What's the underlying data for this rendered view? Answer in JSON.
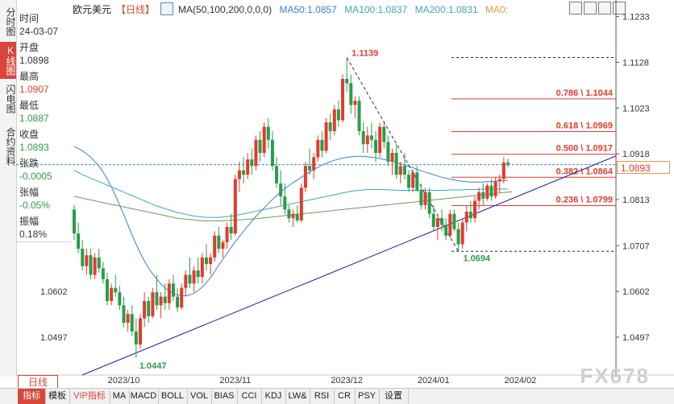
{
  "left_tabs": [
    {
      "label": "分时图",
      "active": false
    },
    {
      "label": "K线图",
      "active": true
    },
    {
      "label": "闪电图",
      "active": false
    },
    {
      "label": "合约资料",
      "active": false
    }
  ],
  "info_panel": {
    "time_label": "时间",
    "time_value": "24-03-07",
    "open_label": "开盘",
    "open_value": "1.0898",
    "high_label": "最高",
    "high_value": "1.0907",
    "low_label": "最低",
    "low_value": "1.0887",
    "close_label": "收盘",
    "close_value": "1.0893",
    "change_label": "张跌",
    "change_value": "-0.0005",
    "pct_label": "张幅",
    "pct_value": "-0.05%",
    "amp_label": "振幅",
    "amp_value": "0.18%"
  },
  "legend": {
    "symbol": "欧元美元",
    "period": "【日线】",
    "ma_params": "MA(50,100,200,0,0,0)",
    "ma50": "MA50:1.0857",
    "ma100": "MA100:1.0837",
    "ma200": "MA200:1.0831",
    "ma0": "MA0:"
  },
  "period_button": "日线",
  "watermark": "FX678",
  "bottom_tabs": [
    "指标",
    "模板",
    "VIP指标",
    "MA",
    "MACD",
    "BOLL",
    "VOL",
    "BIAS",
    "CCI",
    "KDJ",
    "LW&",
    "RSI",
    "CR",
    "PSY",
    "设置"
  ],
  "colors": {
    "up": "#e23b2e",
    "down": "#2a9d4b",
    "ma50": "#3a7fd5",
    "ma100": "#3aa9b6",
    "ma200": "#6b9a5a",
    "fib": "#e23b2e",
    "trend": "#1a1aa0",
    "accent": "#d9463a"
  },
  "chart_data": {
    "type": "candlestick",
    "title": "欧元美元 日线",
    "x_labels": [
      "2023/10",
      "2023/11",
      "2023/12",
      "2024/01",
      "2024/02"
    ],
    "y_ticks": [
      "1.1233",
      "1.1128",
      "1.1023",
      "1.0918",
      "1.0813",
      "1.0707",
      "1.0602",
      "1.0497"
    ],
    "current_price": "1.0893",
    "high_label": "1.1139",
    "low_label": "1.0694",
    "origin_low_label": "1.0447",
    "fib_levels": [
      {
        "ratio": "0.786",
        "value": 1.1044,
        "label": "0.786 \\ 1.1044"
      },
      {
        "ratio": "0.618",
        "value": 1.0969,
        "label": "0.618 \\ 1.0969"
      },
      {
        "ratio": "0.500",
        "value": 1.0917,
        "label": "0.500 \\ 1.0917"
      },
      {
        "ratio": "0.382",
        "value": 1.0864,
        "label": "0.382 \\ 1.0864"
      },
      {
        "ratio": "0.236",
        "value": 1.0799,
        "label": "0.236 \\ 1.0799"
      }
    ],
    "ylim": [
      1.041,
      1.126
    ],
    "candles": [
      [
        1.079,
        1.08,
        1.072,
        1.0735
      ],
      [
        1.0735,
        1.076,
        1.069,
        1.07
      ],
      [
        1.07,
        1.072,
        1.065,
        1.066
      ],
      [
        1.066,
        1.07,
        1.064,
        1.0685
      ],
      [
        1.0685,
        1.07,
        1.063,
        1.064
      ],
      [
        1.064,
        1.069,
        1.063,
        1.068
      ],
      [
        1.068,
        1.07,
        1.0645,
        1.0655
      ],
      [
        1.0655,
        1.067,
        1.062,
        1.063
      ],
      [
        1.063,
        1.0645,
        1.057,
        1.058
      ],
      [
        1.058,
        1.062,
        1.057,
        1.061
      ],
      [
        1.061,
        1.064,
        1.059,
        1.06
      ],
      [
        1.06,
        1.0615,
        1.056,
        1.057
      ],
      [
        1.057,
        1.059,
        1.052,
        1.053
      ],
      [
        1.053,
        1.056,
        1.051,
        1.055
      ],
      [
        1.055,
        1.057,
        1.05,
        1.051
      ],
      [
        1.051,
        1.054,
        1.045,
        1.048
      ],
      [
        1.048,
        1.055,
        1.047,
        1.054
      ],
      [
        1.054,
        1.06,
        1.052,
        1.058
      ],
      [
        1.058,
        1.059,
        1.053,
        1.0545
      ],
      [
        1.0545,
        1.061,
        1.054,
        1.06
      ],
      [
        1.06,
        1.064,
        1.056,
        1.057
      ],
      [
        1.057,
        1.06,
        1.054,
        1.059
      ],
      [
        1.059,
        1.062,
        1.056,
        1.0575
      ],
      [
        1.0575,
        1.063,
        1.056,
        1.062
      ],
      [
        1.062,
        1.064,
        1.058,
        1.059
      ],
      [
        1.059,
        1.061,
        1.0555,
        1.0565
      ],
      [
        1.0565,
        1.062,
        1.056,
        1.061
      ],
      [
        1.061,
        1.065,
        1.059,
        1.064
      ],
      [
        1.064,
        1.068,
        1.061,
        1.062
      ],
      [
        1.062,
        1.066,
        1.06,
        1.065
      ],
      [
        1.065,
        1.068,
        1.062,
        1.0635
      ],
      [
        1.0635,
        1.069,
        1.062,
        1.068
      ],
      [
        1.068,
        1.071,
        1.065,
        1.0665
      ],
      [
        1.0665,
        1.069,
        1.064,
        1.068
      ],
      [
        1.068,
        1.074,
        1.067,
        1.073
      ],
      [
        1.073,
        1.075,
        1.069,
        1.07
      ],
      [
        1.07,
        1.072,
        1.068,
        1.0715
      ],
      [
        1.0715,
        1.076,
        1.07,
        1.075
      ],
      [
        1.075,
        1.078,
        1.072,
        1.0735
      ],
      [
        1.0735,
        1.087,
        1.073,
        1.086
      ],
      [
        1.086,
        1.09,
        1.083,
        1.088
      ],
      [
        1.088,
        1.091,
        1.085,
        1.087
      ],
      [
        1.087,
        1.092,
        1.086,
        1.0905
      ],
      [
        1.0905,
        1.093,
        1.087,
        1.089
      ],
      [
        1.089,
        1.096,
        1.088,
        1.095
      ],
      [
        1.095,
        1.097,
        1.09,
        1.092
      ],
      [
        1.092,
        1.099,
        1.091,
        1.098
      ],
      [
        1.098,
        1.1,
        1.093,
        1.095
      ],
      [
        1.095,
        1.097,
        1.088,
        1.089
      ],
      [
        1.089,
        1.091,
        1.084,
        1.085
      ],
      [
        1.085,
        1.088,
        1.08,
        1.082
      ],
      [
        1.082,
        1.085,
        1.078,
        1.079
      ],
      [
        1.079,
        1.08,
        1.076,
        1.077
      ],
      [
        1.077,
        1.079,
        1.075,
        1.078
      ],
      [
        1.078,
        1.08,
        1.076,
        1.0765
      ],
      [
        1.0765,
        1.085,
        1.076,
        1.084
      ],
      [
        1.084,
        1.09,
        1.083,
        1.089
      ],
      [
        1.089,
        1.093,
        1.087,
        1.088
      ],
      [
        1.088,
        1.092,
        1.086,
        1.091
      ],
      [
        1.091,
        1.096,
        1.09,
        1.095
      ],
      [
        1.095,
        1.097,
        1.091,
        1.0925
      ],
      [
        1.0925,
        1.1,
        1.092,
        1.099
      ],
      [
        1.099,
        1.101,
        1.095,
        1.097
      ],
      [
        1.097,
        1.103,
        1.096,
        1.102
      ],
      [
        1.102,
        1.104,
        1.098,
        1.0995
      ],
      [
        1.0995,
        1.11,
        1.099,
        1.109
      ],
      [
        1.109,
        1.1139,
        1.106,
        1.108
      ],
      [
        1.108,
        1.11,
        1.101,
        1.103
      ],
      [
        1.103,
        1.105,
        1.1,
        1.104
      ],
      [
        1.104,
        1.105,
        1.096,
        1.097
      ],
      [
        1.097,
        1.099,
        1.092,
        1.094
      ],
      [
        1.094,
        1.098,
        1.092,
        1.096
      ],
      [
        1.096,
        1.099,
        1.093,
        1.095
      ],
      [
        1.095,
        1.097,
        1.09,
        1.092
      ],
      [
        1.092,
        1.099,
        1.091,
        1.098
      ],
      [
        1.098,
        1.099,
        1.093,
        1.0945
      ],
      [
        1.0945,
        1.096,
        1.089,
        1.09
      ],
      [
        1.09,
        1.093,
        1.087,
        1.092
      ],
      [
        1.092,
        1.094,
        1.086,
        1.087
      ],
      [
        1.087,
        1.09,
        1.085,
        1.089
      ],
      [
        1.089,
        1.092,
        1.086,
        1.087
      ],
      [
        1.087,
        1.088,
        1.083,
        1.084
      ],
      [
        1.084,
        1.088,
        1.083,
        1.0875
      ],
      [
        1.0875,
        1.089,
        1.083,
        1.0835
      ],
      [
        1.0835,
        1.085,
        1.079,
        1.08
      ],
      [
        1.08,
        1.084,
        1.079,
        1.083
      ],
      [
        1.083,
        1.084,
        1.077,
        1.078
      ],
      [
        1.078,
        1.08,
        1.074,
        1.075
      ],
      [
        1.075,
        1.078,
        1.072,
        1.077
      ],
      [
        1.077,
        1.079,
        1.074,
        1.0755
      ],
      [
        1.0755,
        1.077,
        1.072,
        1.073
      ],
      [
        1.073,
        1.079,
        1.0725,
        1.078
      ],
      [
        1.078,
        1.079,
        1.074,
        1.0745
      ],
      [
        1.0745,
        1.076,
        1.0694,
        1.071
      ],
      [
        1.071,
        1.077,
        1.07,
        1.076
      ],
      [
        1.076,
        1.08,
        1.074,
        1.0785
      ],
      [
        1.0785,
        1.081,
        1.076,
        1.077
      ],
      [
        1.077,
        1.082,
        1.076,
        1.081
      ],
      [
        1.081,
        1.084,
        1.079,
        1.083
      ],
      [
        1.083,
        1.085,
        1.08,
        1.0815
      ],
      [
        1.0815,
        1.085,
        1.081,
        1.0845
      ],
      [
        1.0845,
        1.086,
        1.081,
        1.082
      ],
      [
        1.082,
        1.0865,
        1.0815,
        1.0855
      ],
      [
        1.0855,
        1.087,
        1.083,
        1.086
      ],
      [
        1.086,
        1.091,
        1.085,
        1.0898
      ],
      [
        1.0898,
        1.0907,
        1.0887,
        1.0893
      ]
    ],
    "ma50": [
      1.0935,
      1.093,
      1.0925,
      1.0918,
      1.091,
      1.09,
      1.089,
      1.0876,
      1.086,
      1.0842,
      1.0822,
      1.08,
      1.0778,
      1.0755,
      1.0732,
      1.071,
      1.069,
      1.0672,
      1.0656,
      1.0642,
      1.063,
      1.0619,
      1.061,
      1.0603,
      1.0598,
      1.0594,
      1.0592,
      1.0592,
      1.0594,
      1.0598,
      1.0604,
      1.0612,
      1.0622,
      1.0634,
      1.0648,
      1.0662,
      1.0676,
      1.069,
      1.0703,
      1.0716,
      1.0728,
      1.074,
      1.0752,
      1.0763,
      1.0774,
      1.0784,
      1.0794,
      1.0804,
      1.0813,
      1.0822,
      1.083,
      1.0838,
      1.0845,
      1.0852,
      1.0858,
      1.0864,
      1.087,
      1.0876,
      1.0882,
      1.0887,
      1.0892,
      1.0896,
      1.09,
      1.0903,
      1.0906,
      1.0908,
      1.091,
      1.0911,
      1.0912,
      1.0912,
      1.0912,
      1.0911,
      1.091,
      1.0909,
      1.0907,
      1.0905,
      1.0903,
      1.0901,
      1.0898,
      1.0895,
      1.0892,
      1.0889,
      1.0886,
      1.0882,
      1.0879,
      1.0876,
      1.0873,
      1.087,
      1.0867,
      1.0864,
      1.0862,
      1.086,
      1.0858,
      1.0856,
      1.0855,
      1.0854,
      1.0853,
      1.0853,
      1.0853,
      1.0853,
      1.0854,
      1.0854,
      1.0855,
      1.0856,
      1.0856,
      1.0857
    ],
    "ma100": [
      1.088,
      1.0875,
      1.087,
      1.0866,
      1.0862,
      1.0858,
      1.0854,
      1.085,
      1.0846,
      1.0842,
      1.0838,
      1.0834,
      1.083,
      1.0826,
      1.0822,
      1.0818,
      1.0814,
      1.081,
      1.0806,
      1.0802,
      1.0798,
      1.0795,
      1.0792,
      1.0789,
      1.0786,
      1.0783,
      1.0781,
      1.0779,
      1.0777,
      1.0775,
      1.0774,
      1.0773,
      1.0772,
      1.0772,
      1.0772,
      1.0772,
      1.0773,
      1.0774,
      1.0775,
      1.0776,
      1.0778,
      1.078,
      1.0782,
      1.0784,
      1.0786,
      1.0788,
      1.079,
      1.0792,
      1.0794,
      1.0796,
      1.0798,
      1.08,
      1.0802,
      1.0804,
      1.0806,
      1.0808,
      1.081,
      1.0812,
      1.0814,
      1.0816,
      1.0818,
      1.082,
      1.0822,
      1.0824,
      1.0826,
      1.0828,
      1.083,
      1.0832,
      1.0833,
      1.0834,
      1.0835,
      1.0836,
      1.0836,
      1.0836,
      1.0836,
      1.0836,
      1.0835,
      1.0835,
      1.0834,
      1.0834,
      1.0834,
      1.0834,
      1.0834,
      1.0834,
      1.0834,
      1.0834,
      1.0834,
      1.0834,
      1.0834,
      1.0834,
      1.0834,
      1.0835,
      1.0835,
      1.0835,
      1.0835,
      1.0836,
      1.0836,
      1.0836,
      1.0836,
      1.0837,
      1.0837,
      1.0837,
      1.0837,
      1.0837,
      1.0837,
      1.0837
    ],
    "ma200": [
      1.082,
      1.0818,
      1.0816,
      1.0814,
      1.0812,
      1.081,
      1.0808,
      1.0806,
      1.0804,
      1.0802,
      1.08,
      1.0798,
      1.0796,
      1.0794,
      1.0792,
      1.079,
      1.0788,
      1.0786,
      1.0784,
      1.0782,
      1.078,
      1.0778,
      1.0776,
      1.0774,
      1.0772,
      1.077,
      1.0769,
      1.0768,
      1.0767,
      1.0766,
      1.0765,
      1.0764,
      1.0764,
      1.0764,
      1.0764,
      1.0764,
      1.0764,
      1.0765,
      1.0765,
      1.0766,
      1.0766,
      1.0767,
      1.0768,
      1.0768,
      1.0769,
      1.077,
      1.0771,
      1.0772,
      1.0773,
      1.0774,
      1.0775,
      1.0776,
      1.0777,
      1.0778,
      1.0779,
      1.078,
      1.0781,
      1.0782,
      1.0783,
      1.0784,
      1.0785,
      1.0786,
      1.0787,
      1.0788,
      1.0789,
      1.079,
      1.0791,
      1.0792,
      1.0793,
      1.0794,
      1.0795,
      1.0796,
      1.0797,
      1.0798,
      1.0799,
      1.08,
      1.0801,
      1.0802,
      1.0803,
      1.0804,
      1.0805,
      1.0806,
      1.0807,
      1.0808,
      1.0809,
      1.081,
      1.0811,
      1.0812,
      1.0813,
      1.0814,
      1.0815,
      1.0816,
      1.0817,
      1.0818,
      1.0819,
      1.082,
      1.0821,
      1.0822,
      1.0823,
      1.0824,
      1.0825,
      1.0826,
      1.0827,
      1.0828,
      1.0829,
      1.083,
      1.0831
    ]
  }
}
